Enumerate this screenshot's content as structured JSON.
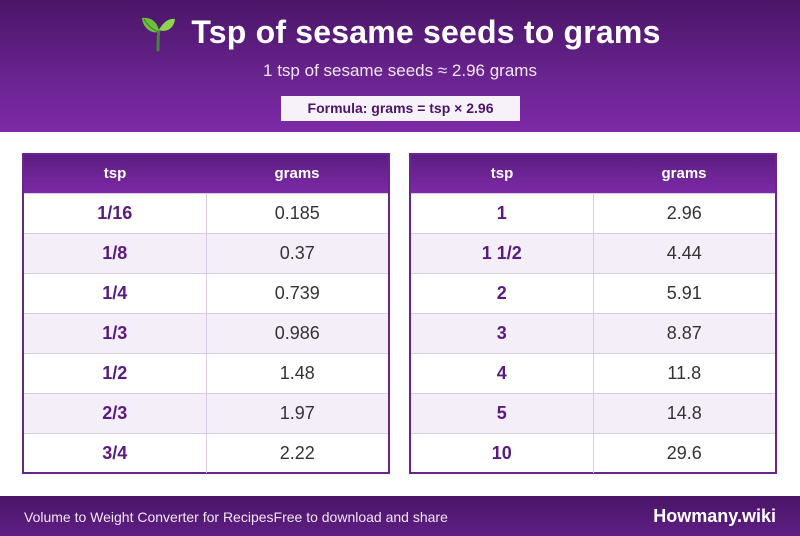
{
  "header": {
    "emoji": "🌱",
    "title": "Tsp of sesame seeds to grams",
    "subtitle": "1 tsp of sesame seeds ≈ 2.96 grams",
    "formula": "Formula: grams = tsp × 2.96"
  },
  "tables": {
    "col_from": "tsp",
    "col_to": "grams",
    "left": [
      {
        "tsp": "1/16",
        "grams": "0.185"
      },
      {
        "tsp": "1/8",
        "grams": "0.37"
      },
      {
        "tsp": "1/4",
        "grams": "0.739"
      },
      {
        "tsp": "1/3",
        "grams": "0.986"
      },
      {
        "tsp": "1/2",
        "grams": "1.48"
      },
      {
        "tsp": "2/3",
        "grams": "1.97"
      },
      {
        "tsp": "3/4",
        "grams": "2.22"
      }
    ],
    "right": [
      {
        "tsp": "1",
        "grams": "2.96"
      },
      {
        "tsp": "1 1/2",
        "grams": "4.44"
      },
      {
        "tsp": "2",
        "grams": "5.91"
      },
      {
        "tsp": "3",
        "grams": "8.87"
      },
      {
        "tsp": "4",
        "grams": "11.8"
      },
      {
        "tsp": "5",
        "grams": "14.8"
      },
      {
        "tsp": "10",
        "grams": "29.6"
      }
    ]
  },
  "footer": {
    "description": "Volume to Weight Converter for RecipesFree to download and share",
    "brand": "Howmany.wiki"
  },
  "colors": {
    "primary": "#6a2490",
    "dark": "#4a1567",
    "row_alt": "#f4eef8"
  }
}
